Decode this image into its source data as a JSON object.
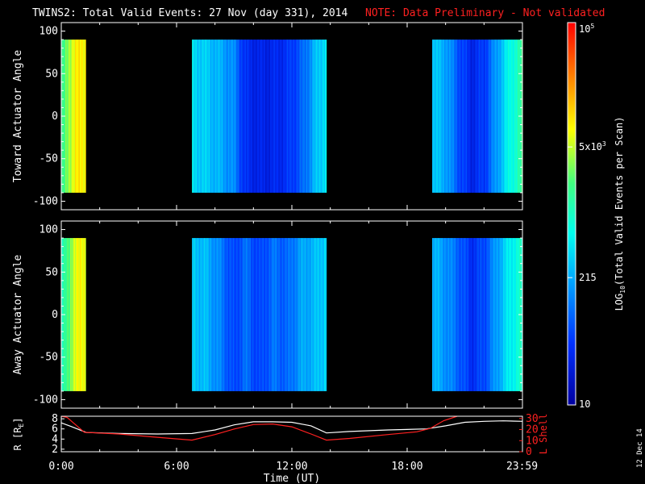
{
  "header": {
    "title": "TWINS2: Total Valid Events: 27 Nov (day 331), 2014",
    "note": "NOTE: Data Preliminary - Not validated"
  },
  "colors": {
    "background": "#000000",
    "axes": "#ffffff",
    "note": "#ff2020",
    "r_line": "#ffffff",
    "lshell_line": "#ff2020"
  },
  "footer": {
    "date_stamp": "12 Dec 14"
  },
  "chart_data": [
    {
      "type": "heatmap",
      "ylabel": "Toward Actuator Angle",
      "ylim": [
        -110,
        110
      ],
      "yticks": [
        100,
        50,
        0,
        -50,
        -100
      ],
      "xlim_hours": [
        0,
        24
      ],
      "data_ylim": [
        -90,
        90
      ],
      "segments_hours": [
        [
          -0.1,
          1.25
        ],
        [
          6.8,
          13.75
        ],
        [
          19.3,
          24.2
        ]
      ],
      "profile": [
        {
          "hour": 0.0,
          "log_value": 3.1
        },
        {
          "hour": 0.15,
          "log_value": 3.3
        },
        {
          "hour": 0.35,
          "log_value": 3.6
        },
        {
          "hour": 0.6,
          "log_value": 3.85
        },
        {
          "hour": 1.0,
          "log_value": 3.95
        },
        {
          "hour": 1.25,
          "log_value": 3.95
        },
        {
          "hour": 6.8,
          "log_value": 2.6
        },
        {
          "hour": 7.5,
          "log_value": 2.5
        },
        {
          "hour": 8.2,
          "log_value": 2.35
        },
        {
          "hour": 9.0,
          "log_value": 2.1
        },
        {
          "hour": 9.5,
          "log_value": 1.6
        },
        {
          "hour": 10.3,
          "log_value": 1.45
        },
        {
          "hour": 11.0,
          "log_value": 1.5
        },
        {
          "hour": 11.7,
          "log_value": 1.6
        },
        {
          "hour": 12.5,
          "log_value": 1.9
        },
        {
          "hour": 13.2,
          "log_value": 2.4
        },
        {
          "hour": 13.75,
          "log_value": 2.7
        },
        {
          "hour": 19.3,
          "log_value": 2.5
        },
        {
          "hour": 20.0,
          "log_value": 2.3
        },
        {
          "hour": 20.7,
          "log_value": 1.8
        },
        {
          "hour": 21.3,
          "log_value": 1.5
        },
        {
          "hour": 22.0,
          "log_value": 1.7
        },
        {
          "hour": 22.7,
          "log_value": 2.3
        },
        {
          "hour": 23.3,
          "log_value": 2.8
        },
        {
          "hour": 24.2,
          "log_value": 3.3
        }
      ]
    },
    {
      "type": "heatmap",
      "ylabel": "Away Actuator Angle",
      "ylim": [
        -110,
        110
      ],
      "yticks": [
        100,
        50,
        0,
        -50,
        -100
      ],
      "xlim_hours": [
        0,
        24
      ],
      "data_ylim": [
        -90,
        90
      ],
      "segments_hours": [
        [
          -0.1,
          1.25
        ],
        [
          6.8,
          13.75
        ],
        [
          19.3,
          24.2
        ]
      ],
      "profile": [
        {
          "hour": 0.0,
          "log_value": 3.0
        },
        {
          "hour": 0.15,
          "log_value": 3.1
        },
        {
          "hour": 0.35,
          "log_value": 3.4
        },
        {
          "hour": 0.6,
          "log_value": 3.7
        },
        {
          "hour": 1.0,
          "log_value": 3.9
        },
        {
          "hour": 1.25,
          "log_value": 3.9
        },
        {
          "hour": 6.8,
          "log_value": 2.5
        },
        {
          "hour": 7.5,
          "log_value": 2.4
        },
        {
          "hour": 8.2,
          "log_value": 2.1
        },
        {
          "hour": 9.0,
          "log_value": 1.7
        },
        {
          "hour": 9.5,
          "log_value": 2.0
        },
        {
          "hour": 10.3,
          "log_value": 1.7
        },
        {
          "hour": 11.0,
          "log_value": 2.0
        },
        {
          "hour": 11.7,
          "log_value": 1.9
        },
        {
          "hour": 12.5,
          "log_value": 2.3
        },
        {
          "hour": 13.2,
          "log_value": 2.4
        },
        {
          "hour": 13.75,
          "log_value": 2.6
        },
        {
          "hour": 19.3,
          "log_value": 2.4
        },
        {
          "hour": 20.0,
          "log_value": 2.2
        },
        {
          "hour": 20.7,
          "log_value": 1.9
        },
        {
          "hour": 21.3,
          "log_value": 1.6
        },
        {
          "hour": 22.0,
          "log_value": 1.8
        },
        {
          "hour": 22.7,
          "log_value": 2.3
        },
        {
          "hour": 23.3,
          "log_value": 2.7
        },
        {
          "hour": 24.2,
          "log_value": 3.1
        }
      ]
    },
    {
      "type": "line",
      "ylabel_left": "R [R",
      "ylabel_left_sub": "E",
      "ylabel_left_close": "]",
      "ylabel_right": "L Shell",
      "ylim_left": [
        1.5,
        8.5
      ],
      "yticks_left": [
        8,
        6,
        4,
        2
      ],
      "ylim_right": [
        0,
        32
      ],
      "yticks_right": [
        30,
        20,
        10,
        0
      ],
      "xlim_hours": [
        0,
        24
      ],
      "xticks": [
        "0:00",
        "6:00",
        "12:00",
        "18:00",
        "23:59"
      ],
      "xtick_hours": [
        0,
        6,
        12,
        18,
        23.98
      ],
      "xlabel": "Time (UT)",
      "series": [
        {
          "axis": "left",
          "x_hours": [
            0,
            0.5,
            1.3,
            3,
            5,
            6.8,
            8,
            9,
            10,
            11,
            12,
            13,
            13.8,
            15,
            17,
            19,
            20,
            21,
            22,
            23,
            24
          ],
          "y": [
            7.2,
            6.5,
            5.3,
            5.1,
            5.0,
            5.1,
            5.8,
            6.8,
            7.4,
            7.4,
            7.3,
            6.6,
            5.2,
            5.5,
            5.8,
            6.0,
            6.6,
            7.3,
            7.5,
            7.6,
            7.5
          ]
        },
        {
          "axis": "right",
          "x_hours": [
            0,
            0.3,
            1.2,
            3,
            5,
            6.8,
            8,
            9,
            10,
            11,
            12,
            13,
            13.8,
            15,
            17,
            18.5,
            19.2,
            19.9,
            20.6
          ],
          "y": [
            32,
            31,
            17.5,
            16,
            13,
            10.5,
            15.5,
            20.5,
            24.5,
            25,
            22.5,
            16,
            10.5,
            12,
            15.5,
            18,
            21,
            28,
            32
          ]
        }
      ]
    }
  ],
  "colorbar": {
    "label_log": "LOG",
    "label_sub": "10",
    "label_rest": "(Total Valid Events per Scan)",
    "log_min": 1,
    "log_max": 5,
    "ticks": [
      {
        "log_value": 5,
        "base": "10",
        "exp": "5"
      },
      {
        "log_value": 3.699,
        "base": "5x10",
        "exp": "3"
      },
      {
        "log_value": 2.332,
        "base": "215",
        "exp": ""
      },
      {
        "log_value": 1,
        "base": "10",
        "exp": ""
      }
    ]
  }
}
